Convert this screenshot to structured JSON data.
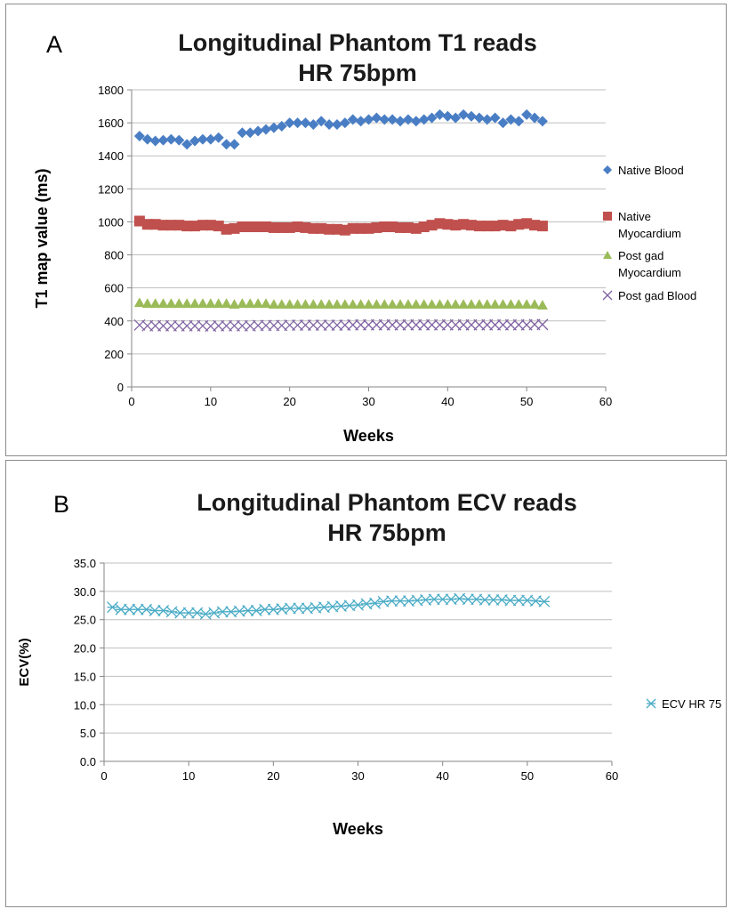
{
  "panels": {
    "a": {
      "letter": "A"
    },
    "b": {
      "letter": "B"
    }
  },
  "chart_data": [
    {
      "id": "t1",
      "type": "scatter",
      "title": [
        "Longitudinal Phantom T1 reads",
        "HR 75bpm"
      ],
      "xlabel": "Weeks",
      "ylabel": "T1 map value (ms)",
      "xlim": [
        0,
        60
      ],
      "ylim": [
        0,
        1800
      ],
      "xticks": [
        "0",
        "10",
        "20",
        "30",
        "40",
        "50",
        "60"
      ],
      "yticks": [
        "0",
        "200",
        "400",
        "600",
        "800",
        "1000",
        "1200",
        "1400",
        "1600",
        "1800"
      ],
      "grid": "horizontal",
      "legend_position": "right",
      "series": [
        {
          "name": [
            "Native Blood"
          ],
          "marker": "diamond",
          "color": "#4a7ec4",
          "x": [
            1,
            2,
            3,
            4,
            5,
            6,
            7,
            8,
            9,
            10,
            11,
            12,
            13,
            14,
            15,
            16,
            17,
            18,
            19,
            20,
            21,
            22,
            23,
            24,
            25,
            26,
            27,
            28,
            29,
            30,
            31,
            32,
            33,
            34,
            35,
            36,
            37,
            38,
            39,
            40,
            41,
            42,
            43,
            44,
            45,
            46,
            47,
            48,
            49,
            50,
            51,
            52
          ],
          "values": [
            1520,
            1500,
            1490,
            1495,
            1500,
            1495,
            1470,
            1490,
            1500,
            1500,
            1510,
            1470,
            1470,
            1540,
            1540,
            1550,
            1560,
            1570,
            1580,
            1600,
            1600,
            1600,
            1590,
            1610,
            1590,
            1590,
            1600,
            1620,
            1610,
            1620,
            1630,
            1620,
            1620,
            1610,
            1620,
            1610,
            1620,
            1630,
            1650,
            1640,
            1630,
            1650,
            1640,
            1630,
            1620,
            1630,
            1600,
            1620,
            1610,
            1650,
            1630,
            1610
          ]
        },
        {
          "name": [
            "Native",
            "Myocardium"
          ],
          "marker": "square",
          "color": "#c0504d",
          "x": [
            1,
            2,
            3,
            4,
            5,
            6,
            7,
            8,
            9,
            10,
            11,
            12,
            13,
            14,
            15,
            16,
            17,
            18,
            19,
            20,
            21,
            22,
            23,
            24,
            25,
            26,
            27,
            28,
            29,
            30,
            31,
            32,
            33,
            34,
            35,
            36,
            37,
            38,
            39,
            40,
            41,
            42,
            43,
            44,
            45,
            46,
            47,
            48,
            49,
            50,
            51,
            52
          ],
          "values": [
            1005,
            985,
            985,
            980,
            980,
            980,
            975,
            975,
            980,
            980,
            975,
            955,
            960,
            970,
            970,
            970,
            970,
            965,
            965,
            965,
            970,
            965,
            960,
            960,
            955,
            955,
            950,
            960,
            960,
            960,
            965,
            970,
            970,
            965,
            965,
            960,
            970,
            980,
            990,
            985,
            980,
            985,
            980,
            975,
            975,
            975,
            980,
            975,
            985,
            990,
            980,
            975
          ]
        },
        {
          "name": [
            "Post gad",
            "Myocardium"
          ],
          "marker": "triangle",
          "color": "#9bbb59",
          "x": [
            1,
            2,
            3,
            4,
            5,
            6,
            7,
            8,
            9,
            10,
            11,
            12,
            13,
            14,
            15,
            16,
            17,
            18,
            19,
            20,
            21,
            22,
            23,
            24,
            25,
            26,
            27,
            28,
            29,
            30,
            31,
            32,
            33,
            34,
            35,
            36,
            37,
            38,
            39,
            40,
            41,
            42,
            43,
            44,
            45,
            46,
            47,
            48,
            49,
            50,
            51,
            52
          ],
          "values": [
            510,
            505,
            505,
            505,
            505,
            505,
            505,
            505,
            505,
            505,
            505,
            505,
            500,
            505,
            505,
            505,
            505,
            500,
            500,
            500,
            500,
            500,
            500,
            500,
            500,
            500,
            500,
            500,
            500,
            500,
            500,
            500,
            500,
            500,
            500,
            500,
            500,
            500,
            500,
            500,
            500,
            500,
            500,
            500,
            500,
            500,
            500,
            500,
            500,
            500,
            500,
            495
          ]
        },
        {
          "name": [
            "Post gad Blood"
          ],
          "marker": "x",
          "color": "#8064a2",
          "x": [
            1,
            2,
            3,
            4,
            5,
            6,
            7,
            8,
            9,
            10,
            11,
            12,
            13,
            14,
            15,
            16,
            17,
            18,
            19,
            20,
            21,
            22,
            23,
            24,
            25,
            26,
            27,
            28,
            29,
            30,
            31,
            32,
            33,
            34,
            35,
            36,
            37,
            38,
            39,
            40,
            41,
            42,
            43,
            44,
            45,
            46,
            47,
            48,
            49,
            50,
            51,
            52
          ],
          "values": [
            375,
            370,
            370,
            370,
            370,
            370,
            370,
            370,
            370,
            368,
            370,
            370,
            370,
            370,
            370,
            372,
            372,
            372,
            372,
            374,
            374,
            374,
            374,
            374,
            374,
            374,
            374,
            376,
            376,
            376,
            376,
            376,
            376,
            376,
            376,
            376,
            376,
            376,
            376,
            376,
            376,
            376,
            376,
            376,
            376,
            376,
            376,
            376,
            376,
            376,
            378,
            378
          ]
        }
      ]
    },
    {
      "id": "ecv",
      "type": "scatter",
      "title": [
        "Longitudinal Phantom ECV reads",
        "HR 75bpm"
      ],
      "xlabel": "Weeks",
      "ylabel": "ECV(%)",
      "xlim": [
        0,
        60
      ],
      "ylim": [
        0,
        35
      ],
      "xticks": [
        "0",
        "10",
        "20",
        "30",
        "40",
        "50",
        "60"
      ],
      "yticks": [
        "0.0",
        "5.0",
        "10.0",
        "15.0",
        "20.0",
        "25.0",
        "30.0",
        "35.0"
      ],
      "grid": "horizontal",
      "legend_position": "right",
      "series": [
        {
          "name": [
            "ECV HR 75"
          ],
          "marker": "asterisk",
          "color": "#4bacc6",
          "x": [
            1,
            2,
            3,
            4,
            5,
            6,
            7,
            8,
            9,
            10,
            11,
            12,
            13,
            14,
            15,
            16,
            17,
            18,
            19,
            20,
            21,
            22,
            23,
            24,
            25,
            26,
            27,
            28,
            29,
            30,
            31,
            32,
            33,
            34,
            35,
            36,
            37,
            38,
            39,
            40,
            41,
            42,
            43,
            44,
            45,
            46,
            47,
            48,
            49,
            50,
            51,
            52
          ],
          "values": [
            27.2,
            26.8,
            26.8,
            26.8,
            26.8,
            26.6,
            26.6,
            26.4,
            26.2,
            26.2,
            26.2,
            26.0,
            26.2,
            26.4,
            26.4,
            26.5,
            26.6,
            26.6,
            26.8,
            26.8,
            26.9,
            27.0,
            27.0,
            27.0,
            27.1,
            27.2,
            27.3,
            27.4,
            27.5,
            27.6,
            27.8,
            27.9,
            28.2,
            28.3,
            28.3,
            28.3,
            28.4,
            28.5,
            28.6,
            28.6,
            28.6,
            28.7,
            28.6,
            28.6,
            28.5,
            28.5,
            28.5,
            28.4,
            28.4,
            28.4,
            28.3,
            28.2
          ]
        }
      ]
    }
  ]
}
